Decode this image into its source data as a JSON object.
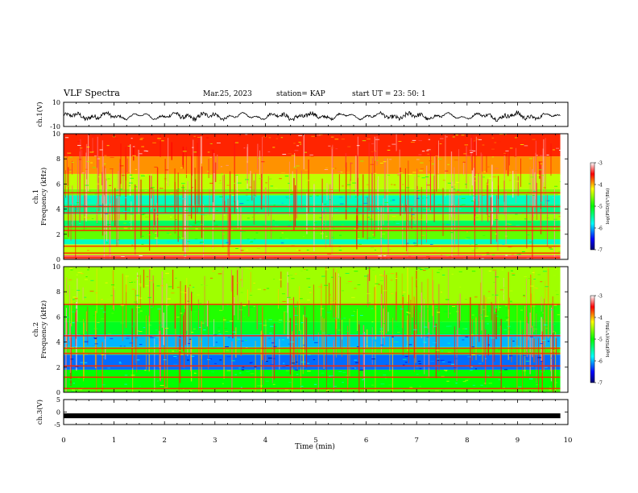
{
  "header": {
    "title": "VLF Spectra",
    "date": "Mar.25, 2023",
    "station": "station= KAP",
    "start": "start  UT  =   23: 50: 1"
  },
  "chart_data": [
    {
      "type": "line",
      "panel": "ch1-waveform",
      "ylabel": "ch.1(V)",
      "yticks": [
        "10",
        "-10"
      ],
      "ylim": [
        -10,
        10
      ],
      "x_range_min": [
        0,
        9.85
      ],
      "approx_mean_value": -1.5,
      "approx_amplitude": 4
    },
    {
      "type": "heatmap",
      "panel": "ch1-spectrogram",
      "ylabel": "ch.1 Frequency (kHz)",
      "yticks": [
        "0",
        "2",
        "4",
        "6",
        "8",
        "10"
      ],
      "ylim": [
        0,
        10
      ],
      "colorbar": {
        "ticks": [
          "-3",
          "-4",
          "-5",
          "-6",
          "-7"
        ],
        "label": "log(PSD)(V²/Hz)",
        "range": [
          -7,
          -3
        ]
      },
      "bands": [
        {
          "fmin": 0.0,
          "fmax": 0.35,
          "level": -3.3
        },
        {
          "fmin": 0.35,
          "fmax": 1.2,
          "level": -4.4
        },
        {
          "fmin": 1.2,
          "fmax": 1.6,
          "level": -5.6
        },
        {
          "fmin": 1.6,
          "fmax": 2.6,
          "level": -4.7
        },
        {
          "fmin": 2.6,
          "fmax": 3.1,
          "level": -5.3
        },
        {
          "fmin": 3.1,
          "fmax": 3.6,
          "level": -4.5
        },
        {
          "fmin": 3.6,
          "fmax": 4.4,
          "level": -5.4
        },
        {
          "fmin": 4.4,
          "fmax": 5.1,
          "level": -5.6
        },
        {
          "fmin": 5.1,
          "fmax": 5.6,
          "level": -4.6
        },
        {
          "fmin": 5.6,
          "fmax": 6.8,
          "level": -4.4
        },
        {
          "fmin": 6.8,
          "fmax": 8.2,
          "level": -3.9
        },
        {
          "fmin": 8.2,
          "fmax": 10.0,
          "level": -3.6
        }
      ],
      "lines_khz": [
        0.15,
        0.5,
        1.05,
        2.3,
        2.6,
        3.7,
        4.2,
        5.3
      ]
    },
    {
      "type": "heatmap",
      "panel": "ch2-spectrogram",
      "ylabel": "ch.2 Frequency (kHz)",
      "yticks": [
        "0",
        "2",
        "4",
        "6",
        "8",
        "10"
      ],
      "ylim": [
        0,
        10
      ],
      "colorbar": {
        "ticks": [
          "-3",
          "-4",
          "-5",
          "-6",
          "-7"
        ],
        "label": "log(PSD)(V²/Hz)",
        "range": [
          -7,
          -3
        ]
      },
      "bands": [
        {
          "fmin": 0.0,
          "fmax": 0.3,
          "level": -4.8
        },
        {
          "fmin": 0.3,
          "fmax": 1.8,
          "level": -5.0
        },
        {
          "fmin": 1.8,
          "fmax": 3.0,
          "level": -6.2
        },
        {
          "fmin": 3.0,
          "fmax": 3.6,
          "level": -4.8
        },
        {
          "fmin": 3.6,
          "fmax": 4.6,
          "level": -6.0
        },
        {
          "fmin": 4.6,
          "fmax": 5.6,
          "level": -5.1
        },
        {
          "fmin": 5.6,
          "fmax": 7.0,
          "level": -4.9
        },
        {
          "fmin": 7.0,
          "fmax": 10.0,
          "level": -4.5
        }
      ],
      "lines_khz": [
        0.3,
        1.2,
        2.1,
        3.1,
        3.5,
        4.5,
        7.0
      ]
    },
    {
      "type": "line",
      "panel": "ch3-waveform",
      "ylabel": "ch.3(V)",
      "yticks": [
        "5",
        "0",
        "-5"
      ],
      "ylim": [
        -5,
        5
      ],
      "x_range_min": [
        0,
        9.85
      ],
      "approx_mean_value": -1.5
    }
  ],
  "xaxis": {
    "label": "Time  (min)",
    "ticks": [
      "0",
      "1",
      "2",
      "3",
      "4",
      "5",
      "6",
      "7",
      "8",
      "9",
      "10"
    ],
    "xlim": [
      0,
      10
    ]
  }
}
